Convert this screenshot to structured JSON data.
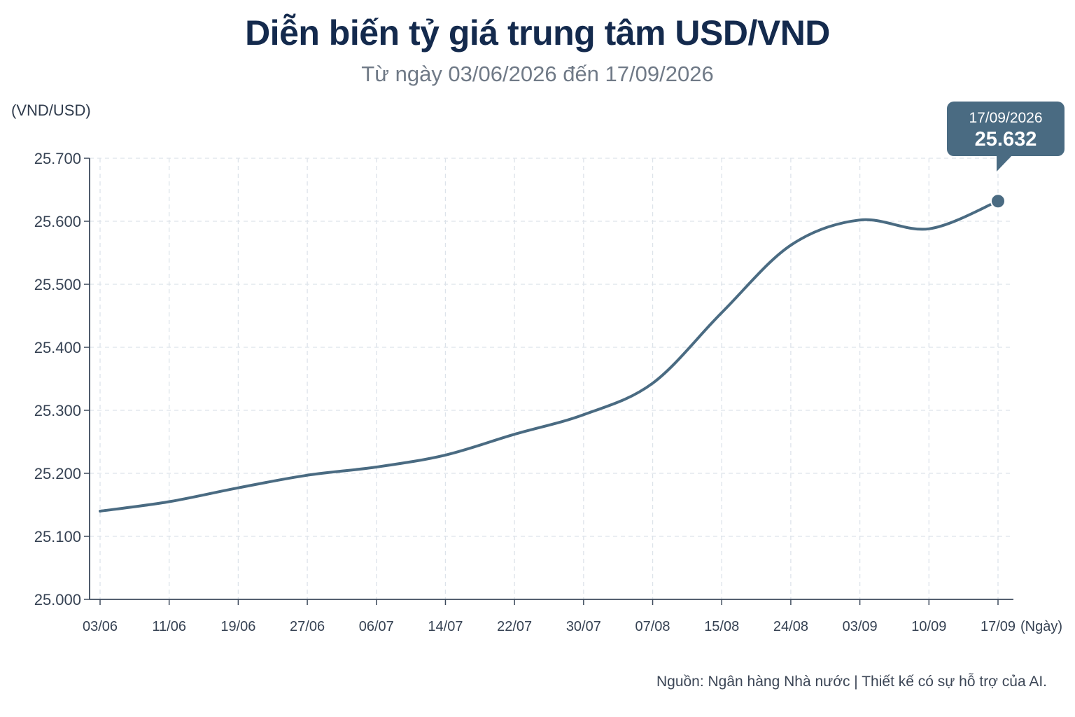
{
  "chart_data": {
    "type": "line",
    "title": "Diễn biến tỷ giá trung tâm USD/VND",
    "subtitle": "Từ ngày 03/06/2026 đến 17/09/2026",
    "ylabel": "(VND/USD)",
    "xlabel": "(Ngày)",
    "ylim": [
      25000,
      25700
    ],
    "yticks": [
      "25.000",
      "25.100",
      "25.200",
      "25.300",
      "25.400",
      "25.500",
      "25.600",
      "25.700"
    ],
    "grid": true,
    "categories": [
      "03/06",
      "11/06",
      "19/06",
      "27/06",
      "06/07",
      "14/07",
      "22/07",
      "30/07",
      "07/08",
      "15/08",
      "24/08",
      "03/09",
      "10/09",
      "17/09"
    ],
    "series": [
      {
        "values": [
          25140,
          25155,
          25177,
          25197,
          25210,
          25229,
          25262,
          25293,
          25343,
          25455,
          25562,
          25602,
          25588,
          25632
        ],
        "color": "#4a6b82"
      }
    ],
    "highlight": {
      "date": "17/09/2026",
      "value_label": "25.632",
      "value": 25632
    }
  },
  "source": "Nguồn: Ngân hàng Nhà nước | Thiết kế có sự hỗ trợ của AI.",
  "colors": {
    "title": "#142a4d",
    "line": "#4a6b82",
    "tooltip_bg": "#4a6b82",
    "grid": "#dde3ea"
  }
}
